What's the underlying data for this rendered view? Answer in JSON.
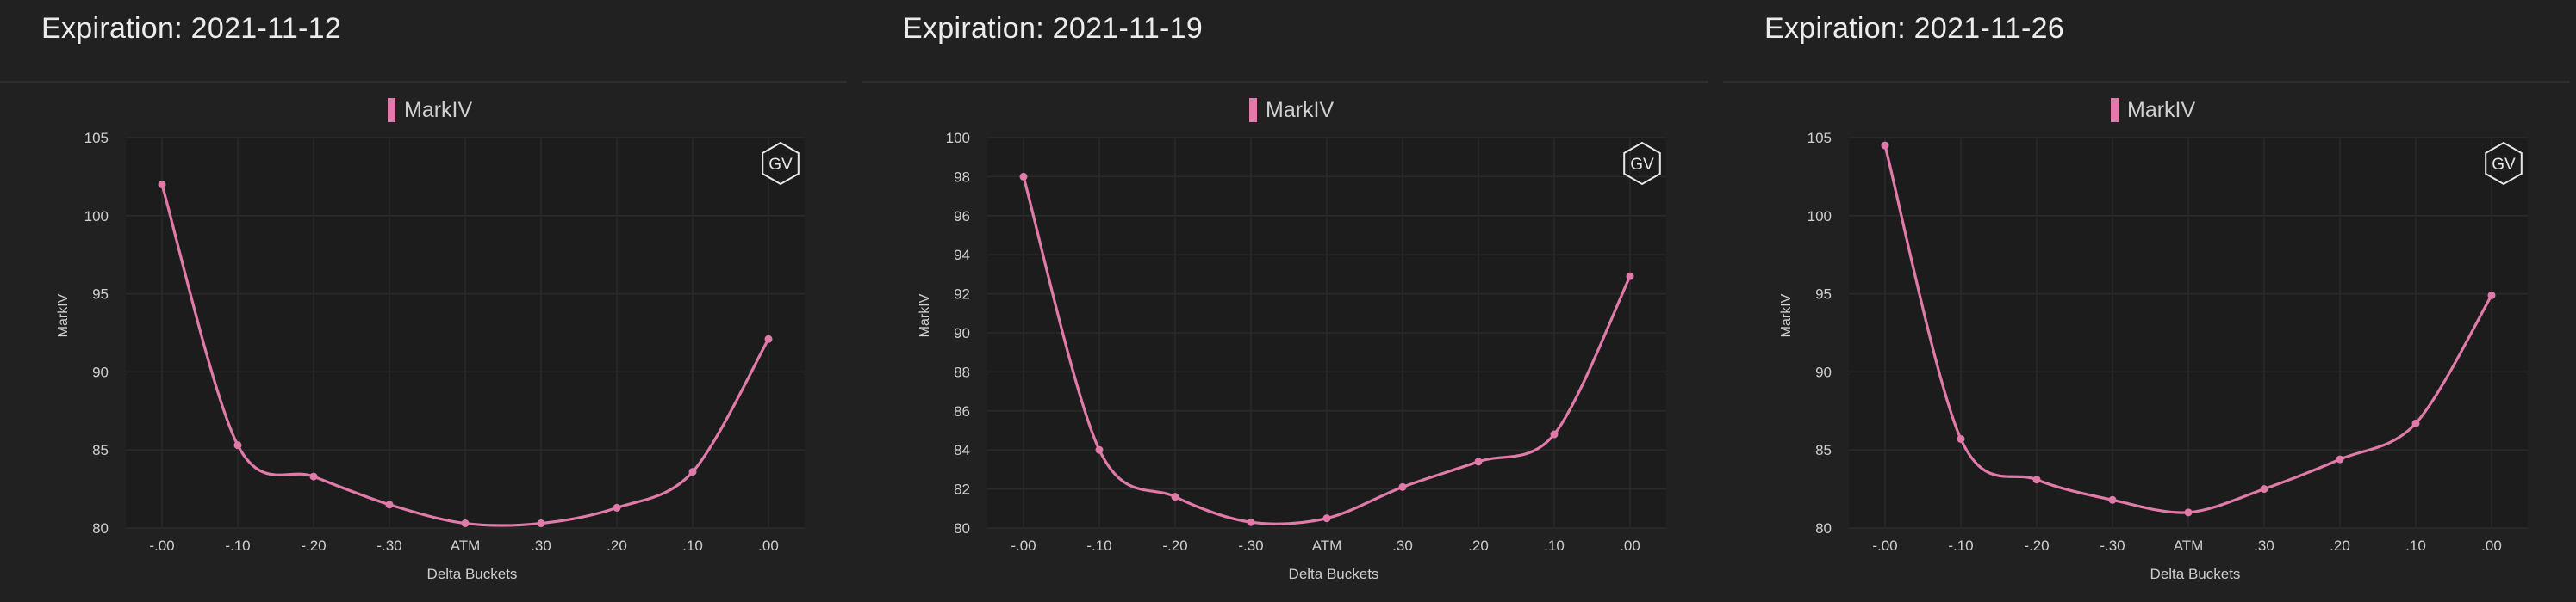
{
  "colors": {
    "background": "#212121",
    "plot_background": "#1c1c1c",
    "grid": "#2a2a2a",
    "series": "#e07aa9",
    "text": "#cfcfcf",
    "title": "#ececec"
  },
  "badge_label": "GV",
  "chart_data": [
    {
      "type": "line",
      "title": "Expiration: 2021-11-12",
      "legend": "top-center",
      "grid": true,
      "xlabel": "Delta Buckets",
      "ylabel": "MarkIV",
      "categories": [
        "-.00",
        "-.10",
        "-.20",
        "-.30",
        "ATM",
        ".30",
        ".20",
        ".10",
        ".00"
      ],
      "yticks": [
        "80",
        "85",
        "90",
        "95",
        "100",
        "105"
      ],
      "ylim": [
        80,
        105
      ],
      "series": [
        {
          "name": "MarkIV",
          "values": [
            102,
            85.3,
            83.3,
            81.5,
            80.3,
            80.3,
            81.3,
            83.6,
            92.1
          ]
        }
      ]
    },
    {
      "type": "line",
      "title": "Expiration: 2021-11-19",
      "legend": "top-center",
      "grid": true,
      "xlabel": "Delta Buckets",
      "ylabel": "MarkIV",
      "categories": [
        "-.00",
        "-.10",
        "-.20",
        "-.30",
        "ATM",
        ".30",
        ".20",
        ".10",
        ".00"
      ],
      "yticks": [
        "80",
        "82",
        "84",
        "86",
        "88",
        "90",
        "92",
        "94",
        "96",
        "98",
        "100"
      ],
      "ylim": [
        80,
        100
      ],
      "series": [
        {
          "name": "MarkIV",
          "values": [
            98,
            84,
            81.6,
            80.3,
            80.5,
            82.1,
            83.4,
            84.8,
            92.9
          ]
        }
      ]
    },
    {
      "type": "line",
      "title": "Expiration: 2021-11-26",
      "legend": "top-center",
      "grid": true,
      "xlabel": "Delta Buckets",
      "ylabel": "MarkIV",
      "categories": [
        "-.00",
        "-.10",
        "-.20",
        "-.30",
        "ATM",
        ".30",
        ".20",
        ".10",
        ".00"
      ],
      "yticks": [
        "80",
        "85",
        "90",
        "95",
        "100",
        "105"
      ],
      "ylim": [
        80,
        105
      ],
      "series": [
        {
          "name": "MarkIV",
          "values": [
            104.5,
            85.7,
            83.1,
            81.8,
            81,
            82.5,
            84.4,
            86.7,
            94.9
          ]
        }
      ]
    }
  ]
}
